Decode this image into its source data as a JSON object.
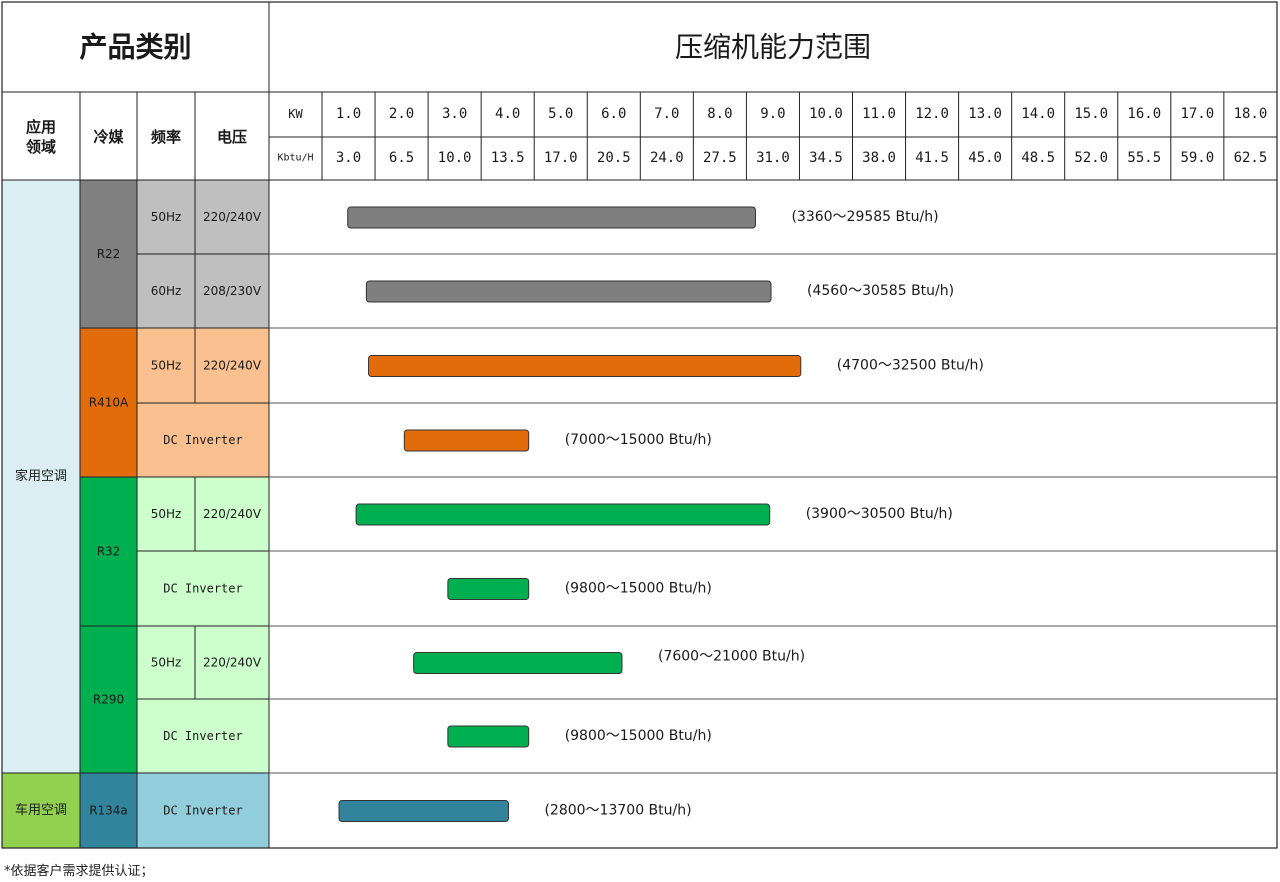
{
  "header": {
    "category_title": "产品类别",
    "range_title": "压缩机能力范围",
    "col_application": "应用\n领域",
    "col_refrigerant": "冷媒",
    "col_frequency": "频率",
    "col_voltage": "电压",
    "kw_label": "KW",
    "kbtu_label": "Kbtu/H"
  },
  "colors": {
    "gray_bar": "#7f7f7f",
    "orange_bar": "#e36c0a",
    "green_bar": "#00b050",
    "blue_bar": "#31849b",
    "home_bg": "#dbeef4",
    "car_bg": "#92d050",
    "r22_bg": "#808080",
    "r22_sub_bg": "#bfbfbf",
    "r410a_bg": "#e36c0a",
    "r410a_sub_bg": "#fac090",
    "r32_bg": "#00b050",
    "r32_sub_bg": "#ccffcc",
    "r134a_bg": "#31849b",
    "r134a_sub_bg": "#92cddc"
  },
  "chart_data": {
    "type": "bar",
    "orientation": "horizontal",
    "title": "压缩机能力范围",
    "kw_ticks": [
      "1.0",
      "2.0",
      "3.0",
      "4.0",
      "5.0",
      "6.0",
      "7.0",
      "8.0",
      "9.0",
      "10.0",
      "11.0",
      "12.0",
      "13.0",
      "14.0",
      "15.0",
      "16.0",
      "17.0",
      "18.0"
    ],
    "kbtu_ticks": [
      "3.0",
      "6.5",
      "10.0",
      "13.5",
      "17.0",
      "20.5",
      "24.0",
      "27.5",
      "31.0",
      "34.5",
      "38.0",
      "41.5",
      "45.0",
      "48.5",
      "52.0",
      "55.5",
      "59.0",
      "62.5"
    ],
    "applications": [
      {
        "name": "家用空调",
        "rows": [
          0,
          7
        ]
      },
      {
        "name": "车用空调",
        "rows": [
          8,
          8
        ]
      }
    ],
    "refrigerants": [
      {
        "name": "R22",
        "rows": [
          0,
          1
        ]
      },
      {
        "name": "R410A",
        "rows": [
          2,
          3
        ]
      },
      {
        "name": "R32",
        "rows": [
          4,
          5
        ]
      },
      {
        "name": "R290",
        "rows": [
          6,
          7
        ]
      },
      {
        "name": "R134a",
        "rows": [
          8,
          8
        ]
      }
    ],
    "series": [
      {
        "refrigerant": "R22",
        "frequency": "50Hz",
        "voltage": "220/240V",
        "min_btu": 3360,
        "max_btu": 29585,
        "label": "(3360～29585 Btu/h)"
      },
      {
        "refrigerant": "R22",
        "frequency": "60Hz",
        "voltage": "208/230V",
        "min_btu": 4560,
        "max_btu": 30585,
        "label": "(4560～30585 Btu/h)"
      },
      {
        "refrigerant": "R410A",
        "frequency": "50Hz",
        "voltage": "220/240V",
        "min_btu": 4700,
        "max_btu": 32500,
        "label": "(4700～32500 Btu/h)"
      },
      {
        "refrigerant": "R410A",
        "frequency": "DC Inverter",
        "voltage": "",
        "min_btu": 7000,
        "max_btu": 15000,
        "label": "(7000～15000 Btu/h)"
      },
      {
        "refrigerant": "R32",
        "frequency": "50Hz",
        "voltage": "220/240V",
        "min_btu": 3900,
        "max_btu": 30500,
        "label": "(3900～30500 Btu/h)"
      },
      {
        "refrigerant": "R32",
        "frequency": "DC Inverter",
        "voltage": "",
        "min_btu": 9800,
        "max_btu": 15000,
        "label": "(9800～15000 Btu/h)"
      },
      {
        "refrigerant": "R290",
        "frequency": "50Hz",
        "voltage": "220/240V",
        "min_btu": 7600,
        "max_btu": 21000,
        "label": "(7600～21000 Btu/h)"
      },
      {
        "refrigerant": "R290",
        "frequency": "DC Inverter",
        "voltage": "",
        "min_btu": 9800,
        "max_btu": 15000,
        "label": "(9800～15000 Btu/h)"
      },
      {
        "refrigerant": "R134a",
        "frequency": "DC Inverter",
        "voltage": "",
        "min_btu": 2800,
        "max_btu": 13700,
        "label": "(2800～13700 Btu/h)"
      }
    ]
  },
  "footnote": "*依据客户需求提供认证；"
}
